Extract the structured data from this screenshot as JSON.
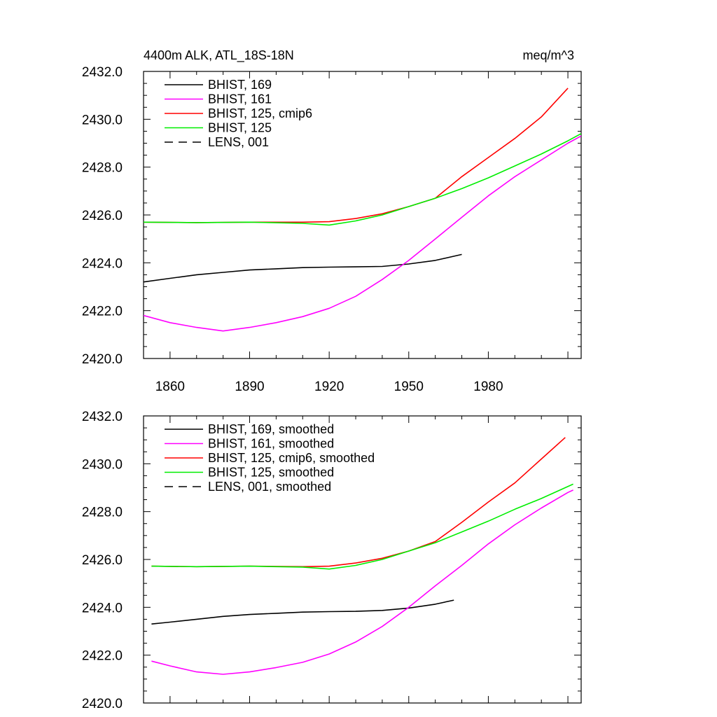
{
  "chart_data": [
    {
      "type": "line",
      "title": "4400m ALK, ATL_18S-18N",
      "units": "meq/m^3",
      "xlim": [
        1850,
        2015
      ],
      "ylim": [
        2420,
        2432
      ],
      "xticks": [
        1860,
        1890,
        1920,
        1950,
        1980
      ],
      "xtick_labels": [
        "1860",
        "1890",
        "1920",
        "1950",
        "1980"
      ],
      "yticks": [
        2420,
        2422,
        2424,
        2426,
        2428,
        2430,
        2432
      ],
      "ytick_labels": [
        "2420.0",
        "2422.0",
        "2424.0",
        "2426.0",
        "2428.0",
        "2430.0",
        "2432.0"
      ],
      "legend_position": "top-left",
      "series": [
        {
          "name": "BHIST, 169",
          "color": "#000000",
          "dash": "solid",
          "x": [
            1850,
            1860,
            1870,
            1880,
            1890,
            1900,
            1910,
            1920,
            1930,
            1940,
            1950,
            1960,
            1970
          ],
          "y": [
            2423.2,
            2423.35,
            2423.5,
            2423.6,
            2423.7,
            2423.75,
            2423.8,
            2423.82,
            2423.83,
            2423.85,
            2423.95,
            2424.1,
            2424.35
          ]
        },
        {
          "name": "BHIST, 161",
          "color": "#ff00ff",
          "dash": "solid",
          "x": [
            1850,
            1860,
            1870,
            1880,
            1890,
            1900,
            1910,
            1920,
            1930,
            1940,
            1950,
            1960,
            1970,
            1980,
            1990,
            2000,
            2010,
            2015
          ],
          "y": [
            2421.8,
            2421.5,
            2421.3,
            2421.15,
            2421.3,
            2421.5,
            2421.75,
            2422.1,
            2422.6,
            2423.3,
            2424.1,
            2425.0,
            2425.9,
            2426.8,
            2427.6,
            2428.3,
            2429.0,
            2429.3
          ]
        },
        {
          "name": "BHIST, 125, cmip6",
          "color": "#ff0000",
          "dash": "solid",
          "x": [
            1850,
            1870,
            1890,
            1910,
            1920,
            1930,
            1940,
            1950,
            1960,
            1970,
            1980,
            1990,
            2000,
            2010
          ],
          "y": [
            2425.7,
            2425.68,
            2425.7,
            2425.7,
            2425.72,
            2425.85,
            2426.05,
            2426.35,
            2426.7,
            2427.6,
            2428.4,
            2429.2,
            2430.1,
            2431.3
          ]
        },
        {
          "name": "BHIST, 125",
          "color": "#00ee00",
          "dash": "solid",
          "x": [
            1850,
            1870,
            1890,
            1910,
            1920,
            1930,
            1940,
            1950,
            1960,
            1970,
            1980,
            1990,
            2000,
            2010,
            2015
          ],
          "y": [
            2425.7,
            2425.68,
            2425.7,
            2425.65,
            2425.58,
            2425.75,
            2426.0,
            2426.35,
            2426.7,
            2427.1,
            2427.55,
            2428.05,
            2428.55,
            2429.1,
            2429.4
          ]
        },
        {
          "name": "LENS, 001",
          "color": "#000000",
          "dash": "dashed",
          "x": [],
          "y": []
        }
      ]
    },
    {
      "type": "line",
      "xlim": [
        1850,
        2015
      ],
      "ylim": [
        2420,
        2432
      ],
      "yticks": [
        2420,
        2422,
        2424,
        2426,
        2428,
        2430,
        2432
      ],
      "ytick_labels": [
        "2420.0",
        "2422.0",
        "2424.0",
        "2426.0",
        "2428.0",
        "2430.0",
        "2432.0"
      ],
      "legend_position": "top-left",
      "series": [
        {
          "name": "BHIST, 169, smoothed",
          "color": "#000000",
          "dash": "solid",
          "x": [
            1853,
            1860,
            1870,
            1880,
            1890,
            1900,
            1910,
            1920,
            1930,
            1940,
            1950,
            1960,
            1967
          ],
          "y": [
            2423.3,
            2423.38,
            2423.5,
            2423.62,
            2423.7,
            2423.75,
            2423.8,
            2423.82,
            2423.83,
            2423.87,
            2423.97,
            2424.13,
            2424.3
          ]
        },
        {
          "name": "BHIST, 161, smoothed",
          "color": "#ff00ff",
          "dash": "solid",
          "x": [
            1853,
            1860,
            1870,
            1880,
            1890,
            1900,
            1910,
            1920,
            1930,
            1940,
            1950,
            1960,
            1970,
            1980,
            1990,
            2000,
            2010,
            2012
          ],
          "y": [
            2421.75,
            2421.55,
            2421.3,
            2421.2,
            2421.3,
            2421.48,
            2421.7,
            2422.05,
            2422.55,
            2423.2,
            2424.0,
            2424.9,
            2425.75,
            2426.65,
            2427.45,
            2428.15,
            2428.8,
            2428.9
          ]
        },
        {
          "name": "BHIST, 125, cmip6, smoothed",
          "color": "#ff0000",
          "dash": "solid",
          "x": [
            1853,
            1870,
            1890,
            1910,
            1920,
            1930,
            1940,
            1950,
            1960,
            1970,
            1980,
            1990,
            2000,
            2009
          ],
          "y": [
            2425.72,
            2425.7,
            2425.72,
            2425.7,
            2425.72,
            2425.85,
            2426.05,
            2426.35,
            2426.75,
            2427.55,
            2428.4,
            2429.2,
            2430.2,
            2431.1
          ]
        },
        {
          "name": "BHIST, 125, smoothed",
          "color": "#00ee00",
          "dash": "solid",
          "x": [
            1853,
            1870,
            1890,
            1910,
            1920,
            1930,
            1940,
            1950,
            1960,
            1970,
            1980,
            1990,
            2000,
            2012
          ],
          "y": [
            2425.72,
            2425.7,
            2425.72,
            2425.68,
            2425.6,
            2425.75,
            2426.0,
            2426.35,
            2426.7,
            2427.15,
            2427.6,
            2428.1,
            2428.55,
            2429.15
          ]
        },
        {
          "name": "LENS, 001, smoothed",
          "color": "#000000",
          "dash": "dashed",
          "x": [],
          "y": []
        }
      ]
    }
  ]
}
